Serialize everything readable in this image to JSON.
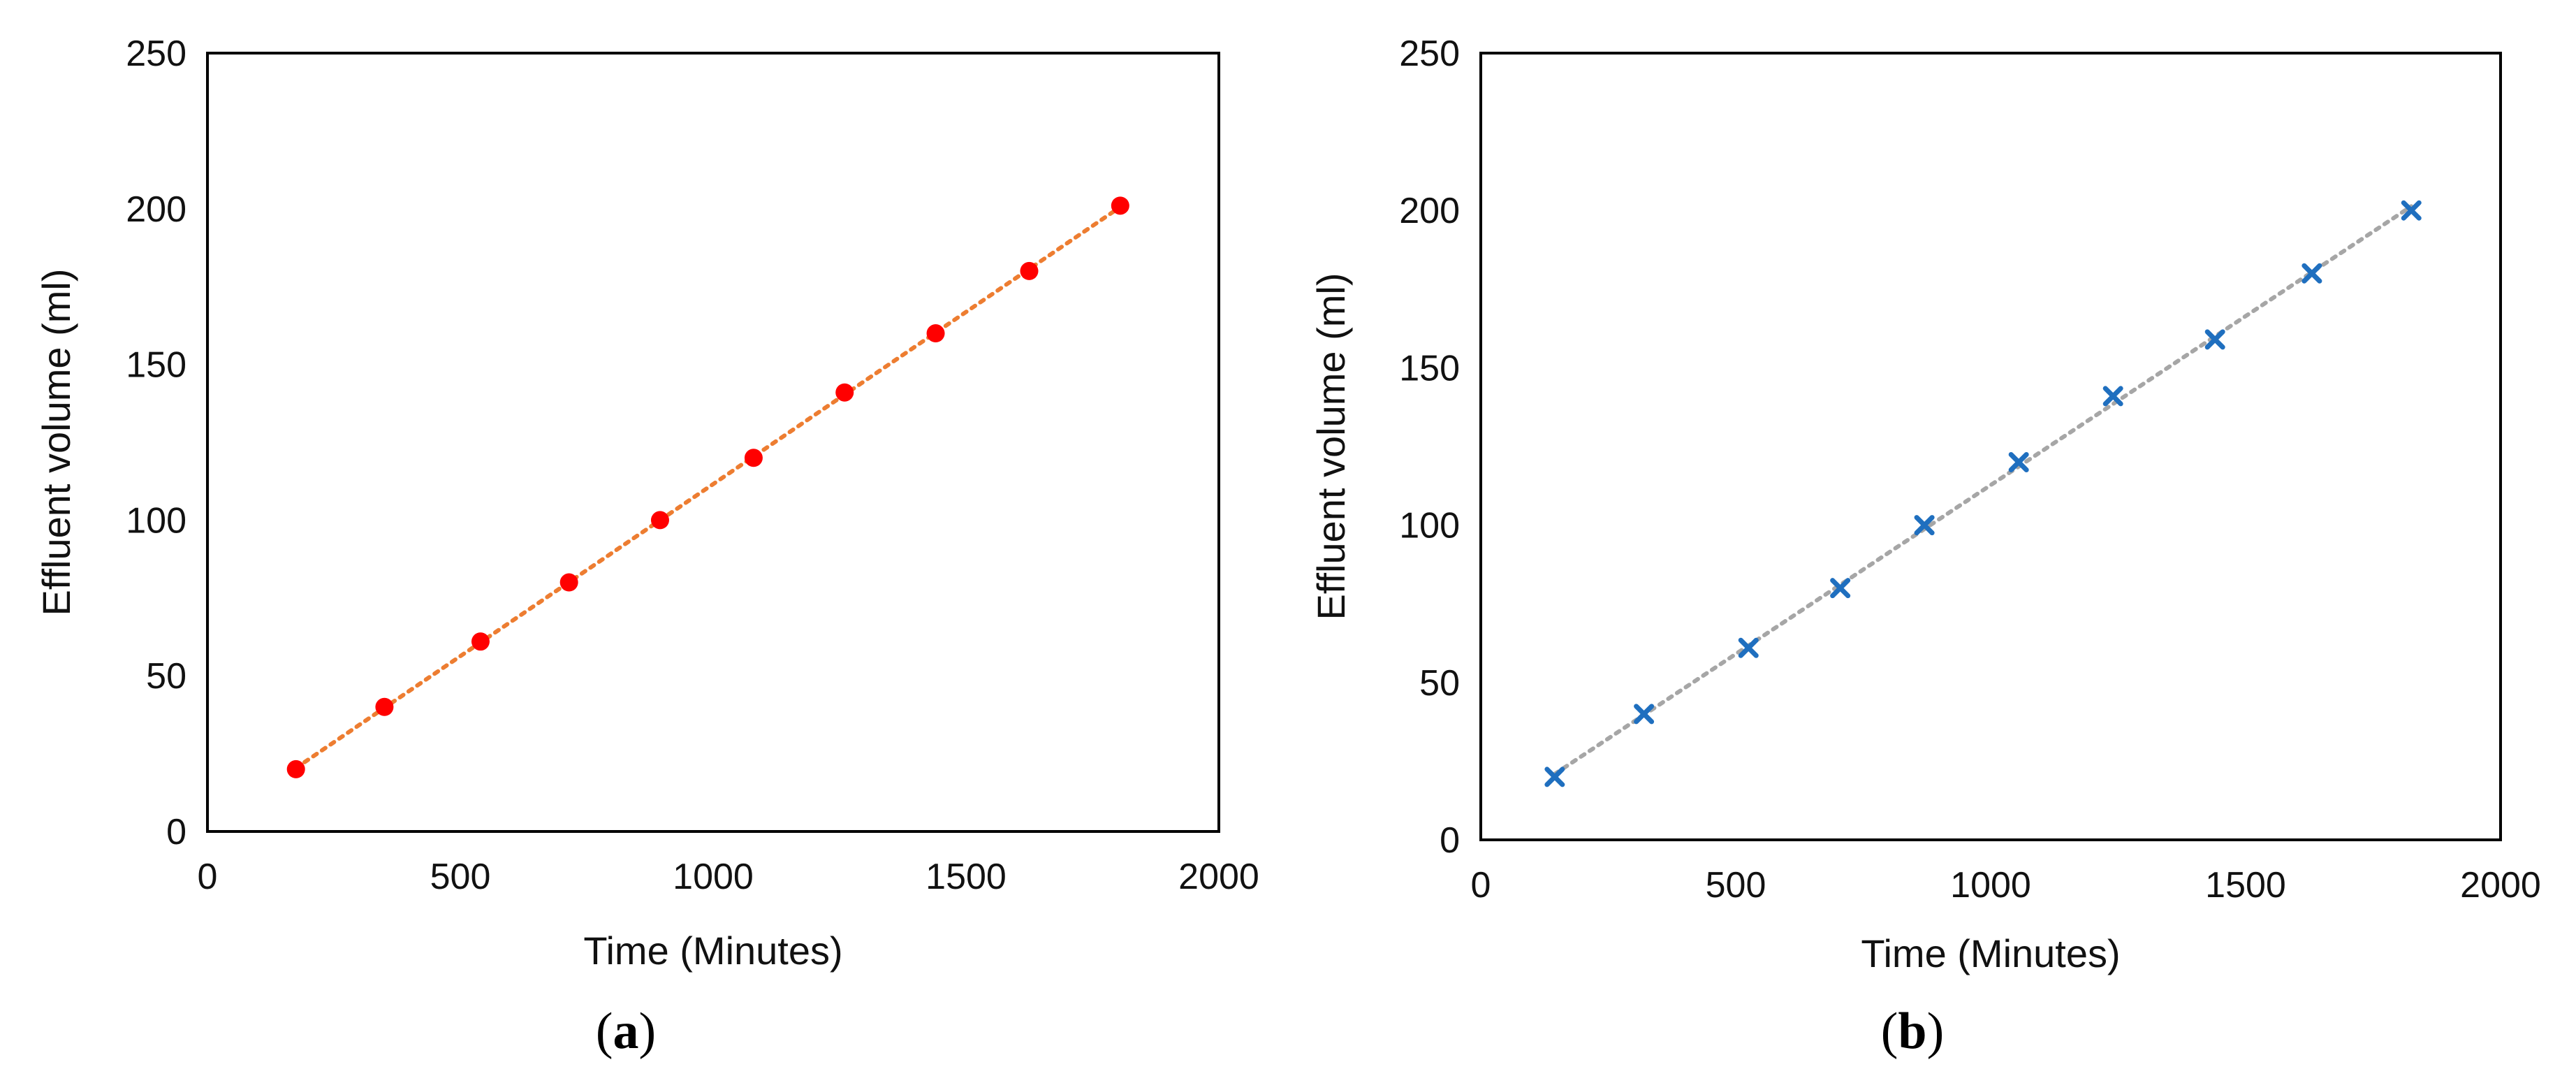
{
  "chart_data": [
    {
      "type": "scatter",
      "panel": "a",
      "caption_open": "(",
      "caption_letter": "a",
      "caption_close": ")",
      "xlabel": "Time (Minutes)",
      "ylabel": "Effluent volume (ml)",
      "xlim": [
        0,
        2000
      ],
      "ylim": [
        0,
        250
      ],
      "xticks": [
        "0",
        "500",
        "1000",
        "1500",
        "2000"
      ],
      "yticks": [
        "0",
        "50",
        "100",
        "150",
        "200",
        "250"
      ],
      "grid": false,
      "marker": "circle",
      "marker_color": "#ff0000",
      "trendline_color": "#ed7d31",
      "series": [
        {
          "x": [
            175,
            350,
            540,
            715,
            895,
            1080,
            1260,
            1440,
            1625,
            1805
          ],
          "y": [
            20,
            40,
            61,
            80,
            100,
            120,
            141,
            160,
            180,
            201
          ]
        }
      ]
    },
    {
      "type": "scatter",
      "panel": "b",
      "caption_open": "(",
      "caption_letter": "b",
      "caption_close": ")",
      "xlabel": "Time (Minutes)",
      "ylabel": "Effluent volume (ml)",
      "xlim": [
        0,
        2000
      ],
      "ylim": [
        0,
        250
      ],
      "xticks": [
        "0",
        "500",
        "1000",
        "1500",
        "2000"
      ],
      "yticks": [
        "0",
        "50",
        "100",
        "150",
        "200",
        "250"
      ],
      "grid": false,
      "marker": "x",
      "marker_color": "#1f6fbf",
      "trendline_color": "#a6a6a6",
      "series": [
        {
          "x": [
            145,
            320,
            525,
            705,
            870,
            1055,
            1240,
            1440,
            1630,
            1825
          ],
          "y": [
            20,
            40,
            61,
            80,
            100,
            120,
            141,
            159,
            180,
            200
          ]
        }
      ]
    }
  ]
}
